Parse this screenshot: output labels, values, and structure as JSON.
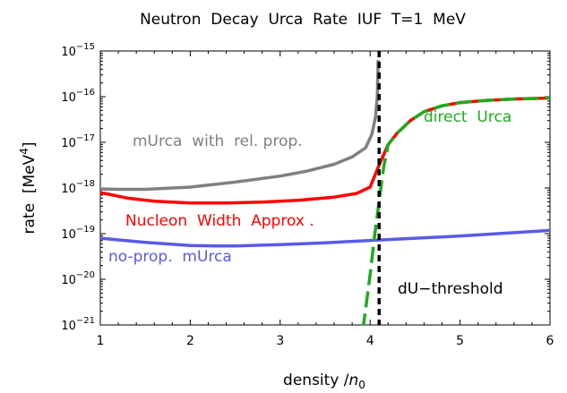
{
  "chart_data": {
    "type": "line",
    "title": "Neutron  Decay  Urca  Rate  IUF  T=1  MeV",
    "xlabel": "density /",
    "xlabel_sym": "n",
    "xlabel_sub": "0",
    "ylabel": "rate  [MeV",
    "ylabel_sup": "4",
    "ylabel_end": "]",
    "xlim": [
      1,
      6
    ],
    "ylim_log10": [
      -21,
      -15
    ],
    "log_y": true,
    "grid": false,
    "x_ticks": [
      {
        "v": 1,
        "label": "1"
      },
      {
        "v": 2,
        "label": "2"
      },
      {
        "v": 3,
        "label": "3"
      },
      {
        "v": 4,
        "label": "4"
      },
      {
        "v": 5,
        "label": "5"
      },
      {
        "v": 6,
        "label": "6"
      }
    ],
    "y_ticks": [
      {
        "v": -15,
        "base": "10",
        "exp": "−15"
      },
      {
        "v": -16,
        "base": "10",
        "exp": "−16"
      },
      {
        "v": -17,
        "base": "10",
        "exp": "−17"
      },
      {
        "v": -18,
        "base": "10",
        "exp": "−18"
      },
      {
        "v": -19,
        "base": "10",
        "exp": "−19"
      },
      {
        "v": -20,
        "base": "10",
        "exp": "−20"
      },
      {
        "v": -21,
        "base": "10",
        "exp": "−21"
      }
    ],
    "series": [
      {
        "name": "mUrca  with  rel. prop.",
        "color": "#808080",
        "dash": "solid",
        "x": [
          1.0,
          1.2,
          1.5,
          2.0,
          2.5,
          3.0,
          3.3,
          3.6,
          3.8,
          3.95,
          4.02,
          4.06,
          4.08,
          4.09
        ],
        "log10_y": [
          -18.02,
          -18.03,
          -18.03,
          -17.98,
          -17.87,
          -17.74,
          -17.63,
          -17.48,
          -17.32,
          -17.12,
          -16.82,
          -16.45,
          -16.0,
          -15.2
        ]
      },
      {
        "name": "Nucleon  Width  Approx .",
        "color": "#ff0000",
        "dash": "solid",
        "x": [
          1.0,
          1.3,
          1.6,
          2.0,
          2.4,
          2.8,
          3.2,
          3.6,
          3.85,
          4.0,
          4.1,
          4.2,
          4.3,
          4.45,
          4.6,
          4.8,
          5.0,
          5.3,
          5.6,
          6.0
        ],
        "log10_y": [
          -18.1,
          -18.22,
          -18.29,
          -18.33,
          -18.33,
          -18.31,
          -18.27,
          -18.2,
          -18.12,
          -17.98,
          -17.5,
          -17.05,
          -16.8,
          -16.52,
          -16.33,
          -16.2,
          -16.13,
          -16.08,
          -16.05,
          -16.03
        ]
      },
      {
        "name": "no-prop.  mUrca",
        "color": "#5a5ae8",
        "dash": "solid",
        "x": [
          1.0,
          1.5,
          2.0,
          2.3,
          2.5,
          3.0,
          3.5,
          4.0,
          4.5,
          5.0,
          5.5,
          6.0
        ],
        "log10_y": [
          -19.1,
          -19.19,
          -19.26,
          -19.27,
          -19.27,
          -19.24,
          -19.2,
          -19.15,
          -19.1,
          -19.05,
          -18.99,
          -18.93
        ]
      },
      {
        "name": "direct  Urca",
        "color": "#1faa1f",
        "dash": "long-dash",
        "x": [
          3.92,
          3.95,
          4.0,
          4.05,
          4.1,
          4.15,
          4.2,
          4.3,
          4.45,
          4.6,
          4.8,
          5.0,
          5.3,
          5.6,
          6.0
        ],
        "log10_y": [
          -21.1,
          -20.65,
          -19.9,
          -19.05,
          -18.3,
          -17.55,
          -17.05,
          -16.8,
          -16.52,
          -16.33,
          -16.2,
          -16.13,
          -16.08,
          -16.05,
          -16.03
        ]
      }
    ],
    "threshold": {
      "x": 4.1,
      "label": "dU−threshold",
      "color": "#000000",
      "dash": "dashed"
    },
    "annotations": [
      {
        "text": "mUrca  with  rel. prop.",
        "color": "#808080"
      },
      {
        "text": "direct  Urca",
        "color": "#1faa1f"
      },
      {
        "text": "Nucleon  Width  Approx .",
        "color": "#ff0000"
      },
      {
        "text": "no-prop.  mUrca",
        "color": "#5a5ae8"
      }
    ]
  }
}
